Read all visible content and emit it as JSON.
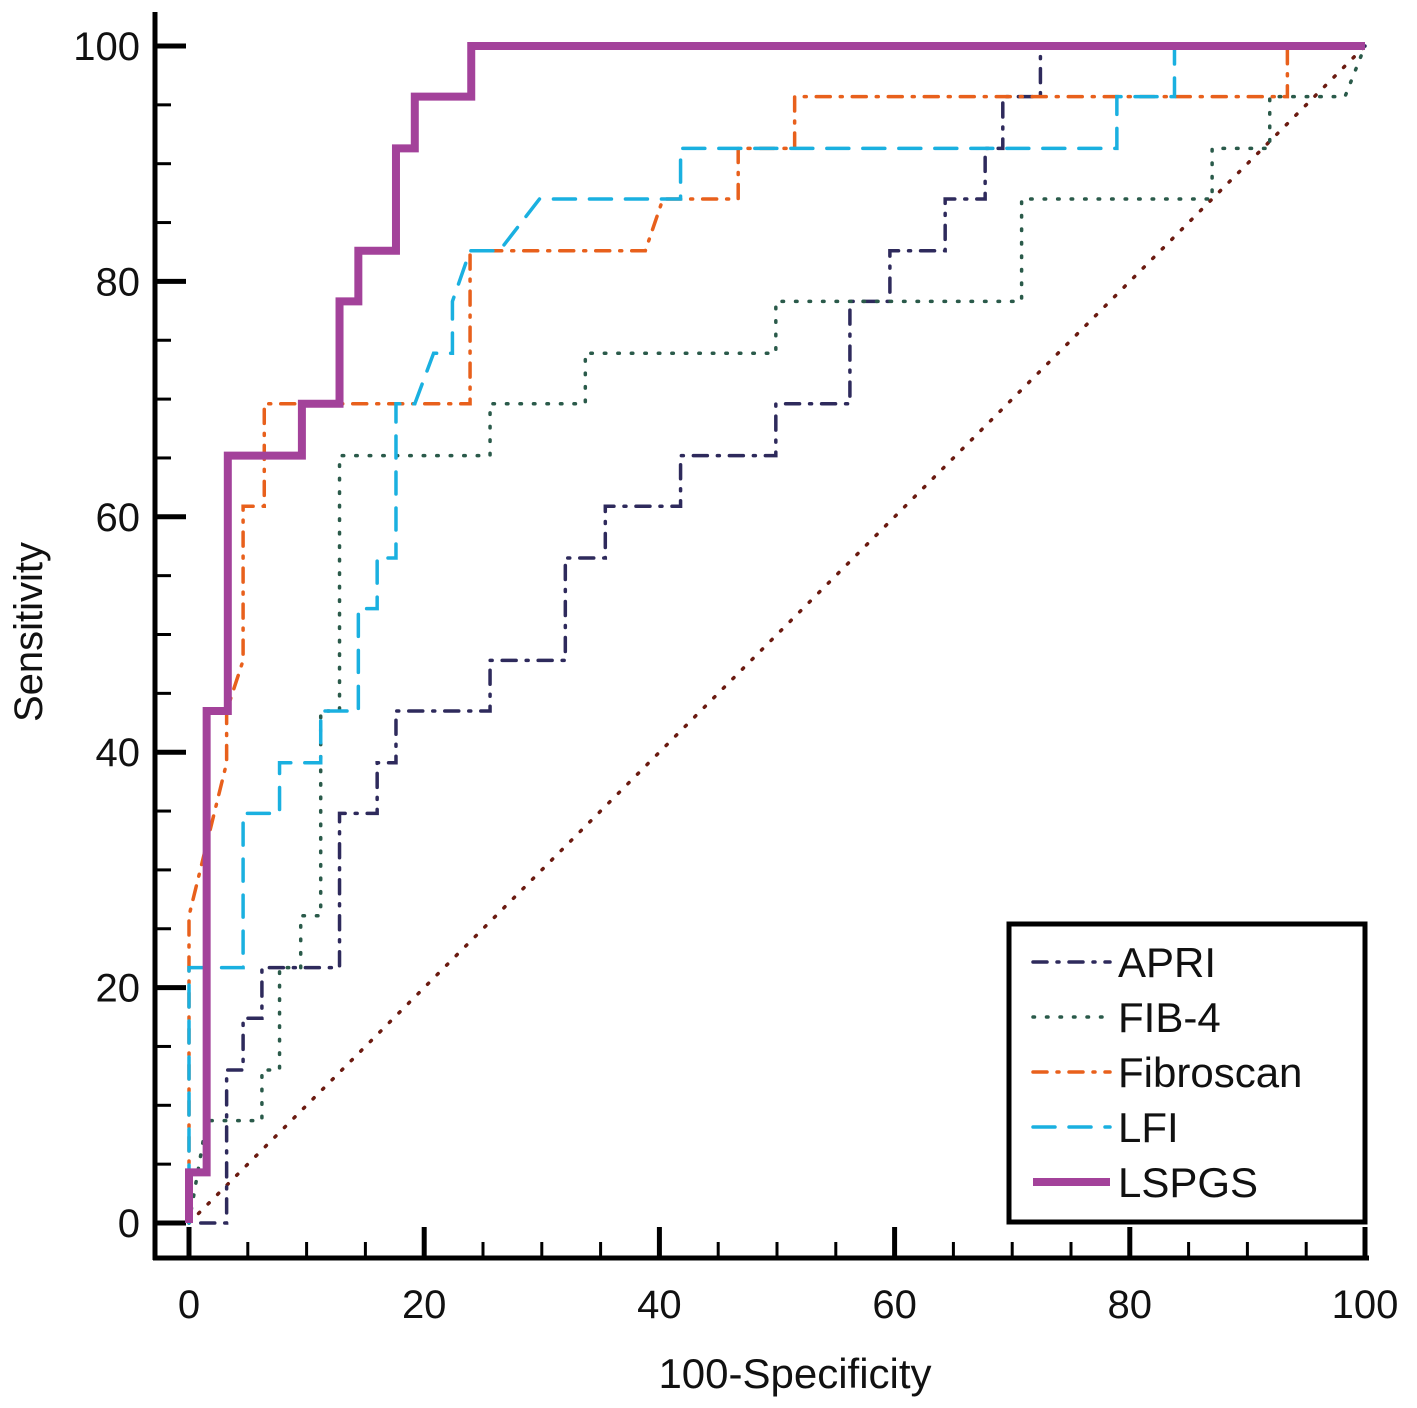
{
  "chart_data": {
    "type": "line",
    "title": "",
    "xlabel": "100-Specificity",
    "ylabel": "Sensitivity",
    "xlim": [
      0,
      100
    ],
    "ylim": [
      0,
      100
    ],
    "xticks": [
      0,
      20,
      40,
      60,
      80,
      100
    ],
    "yticks": [
      0,
      20,
      40,
      60,
      80,
      100
    ],
    "grid": false,
    "legend_position": "bottom-right",
    "reference_line": {
      "points": [
        [
          0,
          0
        ],
        [
          100,
          100
        ]
      ],
      "color": "#6b1a10",
      "style": "dotted"
    },
    "series": [
      {
        "name": "APRI",
        "color": "#2e2a5c",
        "style": "dash-dot",
        "points": [
          [
            1,
            0
          ],
          [
            3.2,
            0
          ],
          [
            3.2,
            13
          ],
          [
            4.6,
            13
          ],
          [
            4.6,
            17.4
          ],
          [
            6.2,
            17.4
          ],
          [
            6.2,
            21.7
          ],
          [
            12.8,
            21.7
          ],
          [
            12.8,
            34.8
          ],
          [
            16,
            34.8
          ],
          [
            16,
            39.1
          ],
          [
            17.6,
            39.1
          ],
          [
            17.6,
            43.5
          ],
          [
            25.6,
            43.5
          ],
          [
            25.6,
            47.8
          ],
          [
            32,
            47.8
          ],
          [
            32,
            56.5
          ],
          [
            35.4,
            56.5
          ],
          [
            35.4,
            60.9
          ],
          [
            41.8,
            60.9
          ],
          [
            41.8,
            65.2
          ],
          [
            49.9,
            65.2
          ],
          [
            49.9,
            69.6
          ],
          [
            56.2,
            69.6
          ],
          [
            56.2,
            78.3
          ],
          [
            59.6,
            78.3
          ],
          [
            59.6,
            82.6
          ],
          [
            64.3,
            82.6
          ],
          [
            64.3,
            87
          ],
          [
            67.7,
            87
          ],
          [
            67.7,
            91.3
          ],
          [
            69.2,
            91.3
          ],
          [
            69.2,
            95.7
          ],
          [
            72.4,
            95.7
          ],
          [
            72.4,
            100
          ],
          [
            100,
            100
          ]
        ]
      },
      {
        "name": "FIB-4",
        "color": "#2a5a4a",
        "style": "dotted",
        "points": [
          [
            0,
            0
          ],
          [
            1.5,
            8.7
          ],
          [
            6.2,
            8.7
          ],
          [
            6.2,
            13
          ],
          [
            7.7,
            13
          ],
          [
            7.7,
            21.7
          ],
          [
            9.5,
            21.7
          ],
          [
            9.5,
            26.1
          ],
          [
            11.2,
            26.1
          ],
          [
            11.2,
            43.5
          ],
          [
            12.8,
            43.5
          ],
          [
            12.8,
            65.2
          ],
          [
            25.6,
            65.2
          ],
          [
            25.6,
            69.6
          ],
          [
            33.7,
            69.6
          ],
          [
            33.7,
            73.9
          ],
          [
            49.9,
            73.9
          ],
          [
            49.9,
            78.3
          ],
          [
            70.8,
            78.3
          ],
          [
            70.8,
            87
          ],
          [
            87,
            87
          ],
          [
            87,
            91.3
          ],
          [
            91.9,
            91.3
          ],
          [
            91.9,
            95.7
          ],
          [
            98.3,
            95.7
          ],
          [
            100,
            100
          ]
        ]
      },
      {
        "name": "Fibroscan",
        "color": "#e8601c",
        "style": "dash-dot",
        "points": [
          [
            0,
            0
          ],
          [
            0,
            26.1
          ],
          [
            3.2,
            39.1
          ],
          [
            3.2,
            43.5
          ],
          [
            4.6,
            47.8
          ],
          [
            4.6,
            60.9
          ],
          [
            6.4,
            60.9
          ],
          [
            6.4,
            69.6
          ],
          [
            23.9,
            69.6
          ],
          [
            23.9,
            82.6
          ],
          [
            38.8,
            82.6
          ],
          [
            40.3,
            87
          ],
          [
            46.7,
            87
          ],
          [
            46.7,
            91.3
          ],
          [
            51.5,
            91.3
          ],
          [
            51.5,
            95.7
          ],
          [
            93.4,
            95.7
          ],
          [
            93.4,
            100
          ],
          [
            100,
            100
          ]
        ]
      },
      {
        "name": "LFI",
        "color": "#1ab0e0",
        "style": "dashed",
        "points": [
          [
            0,
            0
          ],
          [
            0,
            21.7
          ],
          [
            4.6,
            21.7
          ],
          [
            4.6,
            34.8
          ],
          [
            7.7,
            34.8
          ],
          [
            7.7,
            39.1
          ],
          [
            11.2,
            39.1
          ],
          [
            11.2,
            43.5
          ],
          [
            14.4,
            43.5
          ],
          [
            14.4,
            52.2
          ],
          [
            16,
            52.2
          ],
          [
            16,
            56.5
          ],
          [
            17.6,
            56.5
          ],
          [
            17.6,
            69.6
          ],
          [
            19.2,
            69.6
          ],
          [
            20.8,
            73.9
          ],
          [
            22.4,
            73.9
          ],
          [
            22.4,
            78.3
          ],
          [
            23.9,
            82.6
          ],
          [
            26.4,
            82.6
          ],
          [
            29.8,
            87
          ],
          [
            41.8,
            87
          ],
          [
            41.8,
            91.3
          ],
          [
            78.9,
            91.3
          ],
          [
            78.9,
            95.7
          ],
          [
            83.8,
            95.7
          ],
          [
            83.8,
            100
          ],
          [
            100,
            100
          ]
        ]
      },
      {
        "name": "LSPGS",
        "color": "#a3429a",
        "style": "solid",
        "points": [
          [
            0,
            0
          ],
          [
            0,
            4.3
          ],
          [
            1.5,
            4.3
          ],
          [
            1.5,
            43.5
          ],
          [
            3.3,
            43.5
          ],
          [
            3.3,
            65.2
          ],
          [
            9.6,
            65.2
          ],
          [
            9.6,
            69.6
          ],
          [
            12.8,
            69.6
          ],
          [
            12.8,
            78.3
          ],
          [
            14.4,
            78.3
          ],
          [
            14.4,
            82.6
          ],
          [
            17.6,
            82.6
          ],
          [
            17.6,
            91.3
          ],
          [
            19.2,
            91.3
          ],
          [
            19.2,
            95.7
          ],
          [
            24,
            95.7
          ],
          [
            24,
            100
          ],
          [
            100,
            100
          ]
        ]
      }
    ]
  }
}
